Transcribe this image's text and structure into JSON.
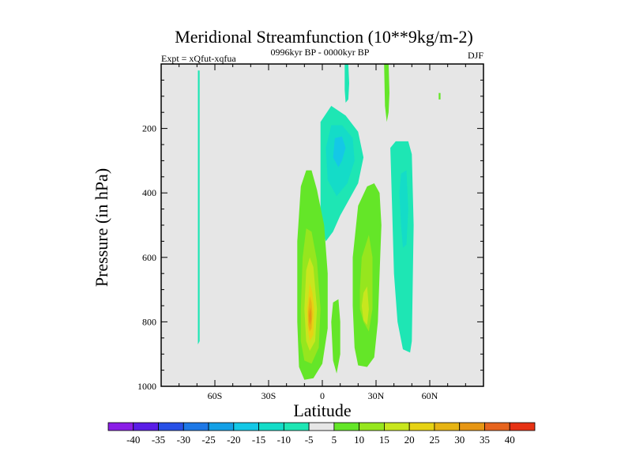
{
  "chart_data": {
    "type": "heatmap",
    "title": "Meridional Streamfunction (10**9kg/m-2)",
    "subtitle_left": "Expt = xQfut-xqfua",
    "subtitle_center": "0996kyr BP - 0000kyr BP",
    "subtitle_right": "DJF",
    "xlabel": "Latitude",
    "ylabel": "Pressure (in hPa)",
    "xlim": [
      -90,
      90
    ],
    "ylim": [
      1000,
      0
    ],
    "x_ticks": [
      -60,
      -30,
      0,
      30,
      60
    ],
    "x_tick_labels": [
      "60S",
      "30S",
      "0",
      "30N",
      "60N"
    ],
    "y_ticks": [
      200,
      400,
      600,
      800,
      1000
    ],
    "y_tick_labels": [
      "200",
      "400",
      "600",
      "800",
      "1000"
    ],
    "background_color": "#e6e6e6",
    "colorbar": {
      "labels": [
        "-40",
        "-35",
        "-30",
        "-25",
        "-20",
        "-15",
        "-10",
        "-5",
        "5",
        "10",
        "15",
        "20",
        "25",
        "30",
        "35",
        "40"
      ],
      "colors": [
        "#8a1ee6",
        "#5a1ee6",
        "#2850e6",
        "#1e78e6",
        "#14a0e6",
        "#14c8e6",
        "#14dcc8",
        "#1ee6b4",
        "#e6e6e6",
        "#64e628",
        "#96e61e",
        "#c8e61e",
        "#e6d214",
        "#e6b414",
        "#e69614",
        "#e6641e",
        "#e63214"
      ]
    },
    "regions": [
      {
        "level": -5,
        "points": [
          [
            -69.5,
            20
          ],
          [
            -68.5,
            20
          ],
          [
            -68.5,
            860
          ],
          [
            -69.5,
            870
          ]
        ]
      },
      {
        "level": -5,
        "points": [
          [
            -1,
            330
          ],
          [
            -1,
            180
          ],
          [
            5,
            130
          ],
          [
            13,
            160
          ],
          [
            20,
            210
          ],
          [
            23,
            290
          ],
          [
            20,
            370
          ],
          [
            15,
            420
          ],
          [
            10,
            470
          ],
          [
            6,
            520
          ],
          [
            2,
            550
          ],
          [
            -1,
            500
          ]
        ]
      },
      {
        "level": -10,
        "points": [
          [
            3,
            360
          ],
          [
            2,
            260
          ],
          [
            5,
            190
          ],
          [
            11,
            190
          ],
          [
            17,
            230
          ],
          [
            18,
            300
          ],
          [
            14,
            370
          ],
          [
            8,
            410
          ]
        ]
      },
      {
        "level": -15,
        "points": [
          [
            6,
            290
          ],
          [
            7,
            230
          ],
          [
            11,
            225
          ],
          [
            13,
            260
          ],
          [
            11,
            300
          ],
          [
            9,
            320
          ]
        ]
      },
      {
        "level": -5,
        "points": [
          [
            38,
            260
          ],
          [
            41,
            240
          ],
          [
            48,
            240
          ],
          [
            50,
            280
          ],
          [
            51,
            500
          ],
          [
            50,
            860
          ],
          [
            49,
            895
          ],
          [
            45,
            885
          ],
          [
            42,
            800
          ],
          [
            40,
            650
          ],
          [
            39,
            450
          ]
        ]
      },
      {
        "level": -10,
        "points": [
          [
            43,
            400
          ],
          [
            44,
            340
          ],
          [
            47,
            330
          ],
          [
            48,
            450
          ],
          [
            47,
            560
          ],
          [
            45,
            570
          ],
          [
            44,
            500
          ]
        ]
      },
      {
        "level": -5,
        "points": [
          [
            12.5,
            0
          ],
          [
            14.5,
            0
          ],
          [
            15,
            60
          ],
          [
            14.5,
            110
          ],
          [
            13,
            120
          ],
          [
            12.5,
            80
          ]
        ]
      },
      {
        "level": 5,
        "points": [
          [
            34.5,
            0
          ],
          [
            37,
            0
          ],
          [
            37.5,
            90
          ],
          [
            37,
            150
          ],
          [
            36,
            180
          ],
          [
            35,
            130
          ]
        ]
      },
      {
        "level": 5,
        "points": [
          [
            -14,
            550
          ],
          [
            -12,
            380
          ],
          [
            -9,
            330
          ],
          [
            -6,
            330
          ],
          [
            -3,
            390
          ],
          [
            1,
            500
          ],
          [
            3,
            650
          ],
          [
            3,
            820
          ],
          [
            0,
            930
          ],
          [
            -5,
            975
          ],
          [
            -10,
            980
          ],
          [
            -13,
            940
          ],
          [
            -14,
            800
          ]
        ]
      },
      {
        "level": 10,
        "points": [
          [
            -12,
            760
          ],
          [
            -11,
            600
          ],
          [
            -9,
            510
          ],
          [
            -6,
            520
          ],
          [
            -3,
            610
          ],
          [
            -1,
            760
          ],
          [
            -2,
            880
          ],
          [
            -6,
            930
          ],
          [
            -10,
            920
          ],
          [
            -12,
            860
          ]
        ]
      },
      {
        "level": 15,
        "points": [
          [
            -10,
            760
          ],
          [
            -9,
            640
          ],
          [
            -7,
            600
          ],
          [
            -5,
            630
          ],
          [
            -3,
            760
          ],
          [
            -4,
            860
          ],
          [
            -7,
            890
          ],
          [
            -9,
            860
          ]
        ]
      },
      {
        "level": 20,
        "points": [
          [
            -8.5,
            760
          ],
          [
            -7,
            680
          ],
          [
            -5.5,
            710
          ],
          [
            -4.5,
            760
          ],
          [
            -5,
            840
          ],
          [
            -7,
            860
          ],
          [
            -8,
            830
          ]
        ]
      },
      {
        "level": 25,
        "points": [
          [
            -8,
            770
          ],
          [
            -7,
            720
          ],
          [
            -6,
            740
          ],
          [
            -5.5,
            775
          ],
          [
            -6,
            820
          ],
          [
            -7,
            830
          ],
          [
            -7.8,
            810
          ]
        ]
      },
      {
        "level": 30,
        "points": [
          [
            -7.5,
            780
          ],
          [
            -6.8,
            755
          ],
          [
            -6.2,
            770
          ],
          [
            -6.1,
            790
          ],
          [
            -6.8,
            810
          ],
          [
            -7.3,
            800
          ]
        ]
      },
      {
        "level": 5,
        "points": [
          [
            5,
            800
          ],
          [
            6,
            740
          ],
          [
            9,
            730
          ],
          [
            10,
            800
          ],
          [
            10,
            900
          ],
          [
            8,
            960
          ],
          [
            6,
            920
          ]
        ]
      },
      {
        "level": 5,
        "points": [
          [
            17,
            600
          ],
          [
            20,
            440
          ],
          [
            25,
            380
          ],
          [
            29,
            370
          ],
          [
            32,
            400
          ],
          [
            33,
            500
          ],
          [
            32,
            650
          ],
          [
            31,
            800
          ],
          [
            29,
            910
          ],
          [
            25,
            940
          ],
          [
            20,
            935
          ],
          [
            18,
            880
          ],
          [
            17,
            750
          ]
        ]
      },
      {
        "level": 10,
        "points": [
          [
            21,
            700
          ],
          [
            22,
            600
          ],
          [
            26,
            530
          ],
          [
            28,
            600
          ],
          [
            28,
            760
          ],
          [
            26,
            830
          ],
          [
            23,
            800
          ],
          [
            21,
            760
          ]
        ]
      },
      {
        "level": 15,
        "points": [
          [
            22,
            750
          ],
          [
            23,
            710
          ],
          [
            25,
            690
          ],
          [
            26,
            760
          ],
          [
            25,
            810
          ],
          [
            23,
            795
          ]
        ]
      },
      {
        "level": 5,
        "points": [
          [
            65,
            90
          ],
          [
            66,
            90
          ],
          [
            66,
            110
          ],
          [
            65,
            110
          ]
        ]
      }
    ]
  }
}
